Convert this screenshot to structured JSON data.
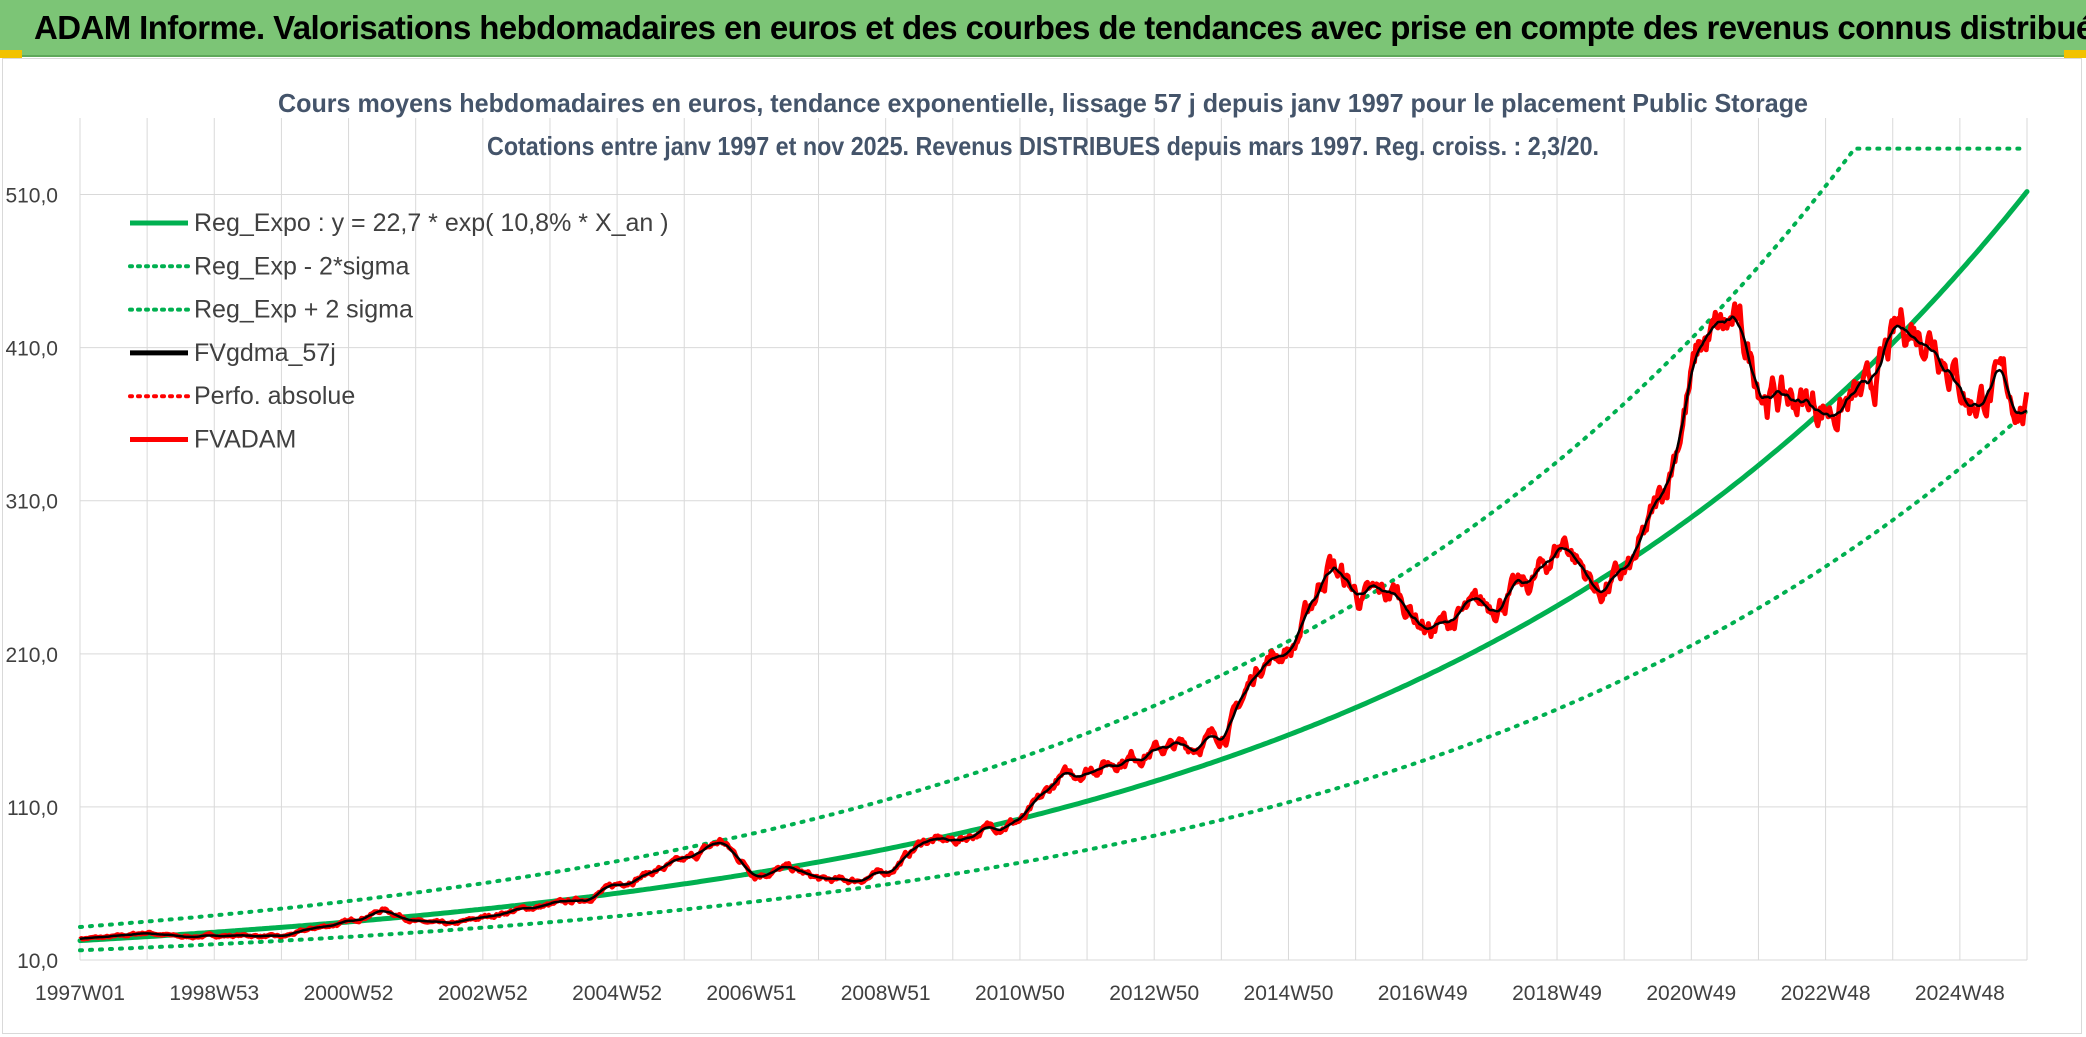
{
  "banner": {
    "title": "ADAM Informe. Valorisations hebdomadaires en euros et des courbes de tendances avec prise en compte des revenus connus distribués"
  },
  "colors": {
    "banner_bg": "#7cc576",
    "trend": "#00b050",
    "fvgdma": "#000000",
    "fvadam": "#ff0000",
    "grid": "#d9d9d9",
    "text": "#44546a"
  },
  "chart_data": {
    "type": "line",
    "title": "Cours moyens hebdomadaires en euros, tendance exponentielle, lissage 57 j depuis janv 1997 pour le placement Public Storage",
    "subtitle": "Cotations entre janv 1997 et nov 2025. Revenus DISTRIBUES depuis mars 1997. Reg. croiss. : 2,3/20.",
    "xlabel": "",
    "ylabel": "",
    "x_range": [
      1997.0,
      2025.85
    ],
    "ylim": [
      10,
      560
    ],
    "y_ticks": [
      "10,0",
      "110,0",
      "210,0",
      "310,0",
      "410,0",
      "510,0"
    ],
    "x_tick_labels": [
      "1997W01",
      "1998W53",
      "2000W52",
      "2002W52",
      "2004W52",
      "2006W51",
      "2008W51",
      "2010W50",
      "2012W50",
      "2014W50",
      "2016W49",
      "2018W49",
      "2020W49",
      "2022W48",
      "2024W48"
    ],
    "legend": [
      {
        "label": "Reg_Expo : y = 22,7 * exp( 10,8% *  X_an )",
        "color": "#00b050",
        "style": "solid"
      },
      {
        "label": "Reg_Exp - 2*sigma",
        "color": "#00b050",
        "style": "dotted"
      },
      {
        "label": "Reg_Exp + 2 sigma",
        "color": "#00b050",
        "style": "dotted"
      },
      {
        "label": "FVgdma_57j",
        "color": "#000000",
        "style": "solid"
      },
      {
        "label": "Perfo. absolue",
        "color": "#ff0000",
        "style": "dotted"
      },
      {
        "label": "FVADAM",
        "color": "#ff0000",
        "style": "solid"
      }
    ],
    "series": [
      {
        "name": "Reg_Expo",
        "a": 22.7,
        "rate": 0.108,
        "x0": 1997.0
      },
      {
        "name": "Reg_Exp - 2*sigma",
        "factor": 0.72
      },
      {
        "name": "Reg_Exp + 2 sigma",
        "factor": 1.39,
        "cap": 540
      },
      {
        "name": "FVADAM",
        "x": [
          1997.0,
          1997.5,
          1998.0,
          1998.5,
          1999.0,
          1999.5,
          2000.0,
          2000.5,
          2001.0,
          2001.5,
          2002.0,
          2002.5,
          2003.0,
          2003.5,
          2004.0,
          2004.5,
          2005.0,
          2005.5,
          2006.0,
          2006.5,
          2007.0,
          2007.5,
          2008.0,
          2008.5,
          2009.0,
          2009.5,
          2010.0,
          2010.5,
          2011.0,
          2011.5,
          2012.0,
          2012.5,
          2013.0,
          2013.5,
          2014.0,
          2014.5,
          2015.0,
          2015.5,
          2016.0,
          2016.5,
          2017.0,
          2017.5,
          2018.0,
          2018.5,
          2019.0,
          2019.5,
          2020.0,
          2020.5,
          2021.0,
          2021.5,
          2022.0,
          2022.5,
          2023.0,
          2023.5,
          2024.0,
          2024.5,
          2025.0,
          2025.5,
          2025.85
        ],
        "values": [
          24,
          25,
          28,
          25,
          26,
          26,
          25,
          31,
          35,
          43,
          35,
          33,
          38,
          43,
          46,
          50,
          60,
          68,
          75,
          88,
          66,
          70,
          62,
          62,
          68,
          88,
          88,
          97,
          102,
          128,
          136,
          142,
          148,
          150,
          160,
          205,
          215,
          270,
          245,
          250,
          225,
          235,
          245,
          255,
          285,
          250,
          265,
          320,
          410,
          425,
          380,
          375,
          370,
          378,
          425,
          420,
          375,
          385,
          368
        ]
      },
      {
        "name": "FVgdma_57j",
        "smoothing_weeks": 57
      }
    ]
  }
}
